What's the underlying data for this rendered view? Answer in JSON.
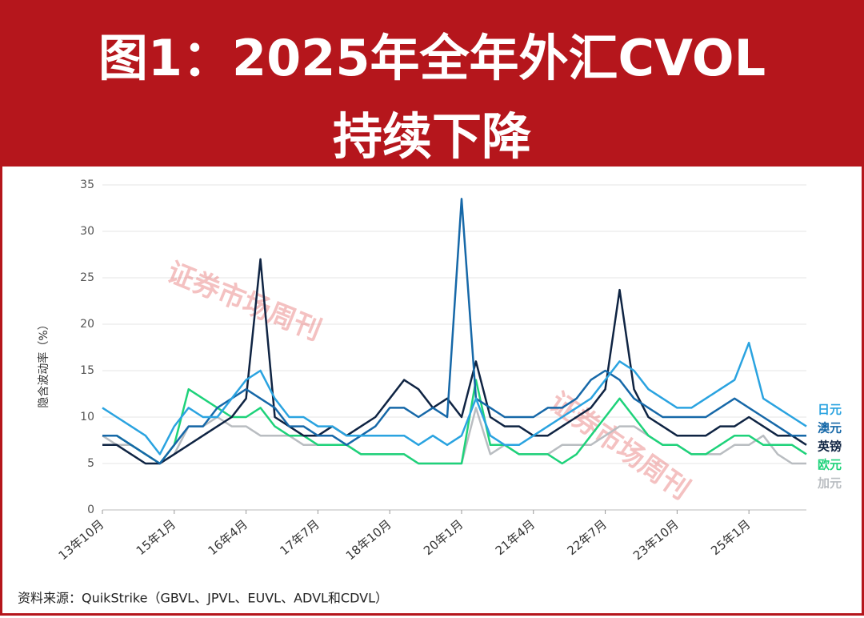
{
  "header": {
    "lines": [
      "图1：2025年全年外汇CVOL",
      "持续下降"
    ]
  },
  "chart_data": {
    "type": "line",
    "ylabel": "隐含波动率（%）",
    "source": "资料来源：QuikStrike（GBVL、JPVL、EUVL、ADVL和CDVL）",
    "watermarks": [
      "证券市场周刊",
      "证券市场周刊"
    ],
    "categories": [
      "13年10月",
      null,
      null,
      null,
      null,
      "15年1月",
      null,
      null,
      null,
      null,
      "16年4月",
      null,
      null,
      null,
      null,
      "17年7月",
      null,
      null,
      null,
      null,
      "18年10月",
      null,
      null,
      null,
      null,
      "20年1月",
      null,
      null,
      null,
      null,
      "21年4月",
      null,
      null,
      null,
      null,
      "22年7月",
      null,
      null,
      null,
      null,
      "23年10月",
      null,
      null,
      null,
      null,
      "25年1月",
      null,
      null,
      null,
      null
    ],
    "ylim": [
      0,
      35
    ],
    "yticks": [
      0,
      5,
      10,
      15,
      20,
      25,
      30,
      35
    ],
    "grid": true,
    "series": [
      {
        "name": "日元",
        "color": "#2aa3e0",
        "values": [
          11,
          10,
          9,
          8,
          6,
          9,
          11,
          10,
          10,
          12,
          14,
          15,
          12,
          10,
          10,
          9,
          9,
          8,
          8,
          8,
          8,
          8,
          7,
          8,
          7,
          8,
          12,
          8,
          7,
          7,
          8,
          9,
          10,
          11,
          12,
          14,
          16,
          15,
          13,
          12,
          11,
          11,
          12,
          13,
          14,
          18,
          12,
          11,
          10,
          9
        ]
      },
      {
        "name": "澳元",
        "color": "#1668a8",
        "values": [
          8,
          8,
          7,
          6,
          5,
          7,
          9,
          9,
          11,
          12,
          13,
          12,
          11,
          9,
          9,
          8,
          8,
          7,
          8,
          9,
          11,
          11,
          10,
          11,
          10,
          33.5,
          12,
          11,
          10,
          10,
          10,
          11,
          11,
          12,
          14,
          15,
          14,
          12,
          11,
          10,
          10,
          10,
          10,
          11,
          12,
          11,
          10,
          9,
          8,
          8
        ]
      },
      {
        "name": "英镑",
        "color": "#0f2443",
        "values": [
          7,
          7,
          6,
          5,
          5,
          6,
          7,
          8,
          9,
          10,
          12,
          27,
          10,
          9,
          8,
          8,
          9,
          8,
          9,
          10,
          12,
          14,
          13,
          11,
          12,
          10,
          16,
          10,
          9,
          9,
          8,
          8,
          9,
          10,
          11,
          13,
          23.7,
          13,
          10,
          9,
          8,
          8,
          8,
          9,
          9,
          10,
          9,
          8,
          8,
          7
        ]
      },
      {
        "name": "欧元",
        "color": "#1ed27a",
        "values": [
          8,
          8,
          7,
          6,
          5,
          7,
          13,
          12,
          11,
          10,
          10,
          11,
          9,
          8,
          8,
          7,
          7,
          7,
          6,
          6,
          6,
          6,
          5,
          5,
          5,
          5,
          14,
          7,
          7,
          6,
          6,
          6,
          5,
          6,
          8,
          10,
          12,
          10,
          8,
          7,
          7,
          6,
          6,
          7,
          8,
          8,
          7,
          7,
          7,
          6
        ]
      },
      {
        "name": "加元",
        "color": "#b9bdc1",
        "values": [
          8,
          7,
          7,
          6,
          5,
          6,
          9,
          9,
          10,
          9,
          9,
          8,
          8,
          8,
          7,
          7,
          7,
          7,
          6,
          6,
          6,
          6,
          5,
          5,
          5,
          5,
          11,
          6,
          7,
          6,
          6,
          6,
          7,
          7,
          7,
          8,
          9,
          9,
          8,
          7,
          7,
          6,
          6,
          6,
          7,
          7,
          8,
          6,
          5,
          5
        ]
      }
    ]
  }
}
